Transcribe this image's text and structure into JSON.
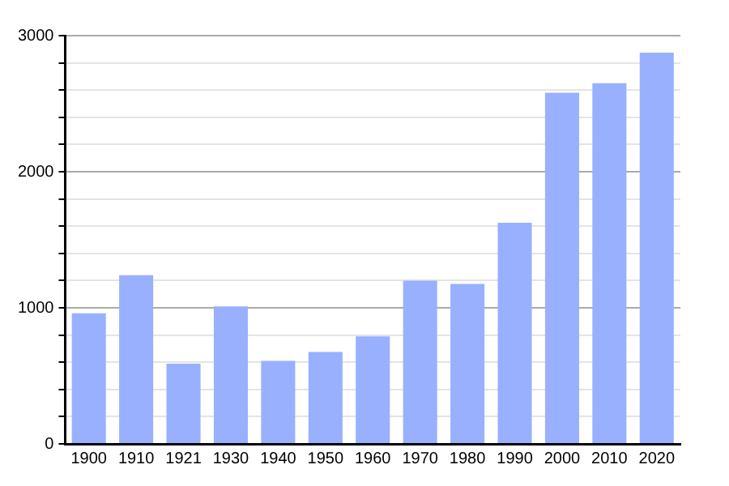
{
  "chart_data": {
    "type": "bar",
    "categories": [
      "1900",
      "1910",
      "1921",
      "1930",
      "1940",
      "1950",
      "1960",
      "1970",
      "1980",
      "1990",
      "2000",
      "2010",
      "2020"
    ],
    "values": [
      960,
      1240,
      590,
      1010,
      610,
      675,
      790,
      1200,
      1175,
      1625,
      2580,
      2650,
      2875
    ],
    "color": "#99b0ff",
    "ylim": [
      0,
      3000
    ],
    "yticks": [
      0,
      {
        "value": 200,
        "label": null
      },
      {
        "value": 400,
        "label": null
      },
      {
        "value": 600,
        "label": null
      },
      {
        "value": 800,
        "label": null
      },
      1000,
      {
        "value": 1200,
        "label": null
      },
      {
        "value": 1400,
        "label": null
      },
      {
        "value": 1600,
        "label": null
      },
      {
        "value": 1800,
        "label": null
      },
      2000,
      {
        "value": 2200,
        "label": null
      },
      {
        "value": 2400,
        "label": null
      },
      {
        "value": 2600,
        "label": null
      },
      {
        "value": 2800,
        "label": null
      },
      3000
    ],
    "grid": "y"
  }
}
